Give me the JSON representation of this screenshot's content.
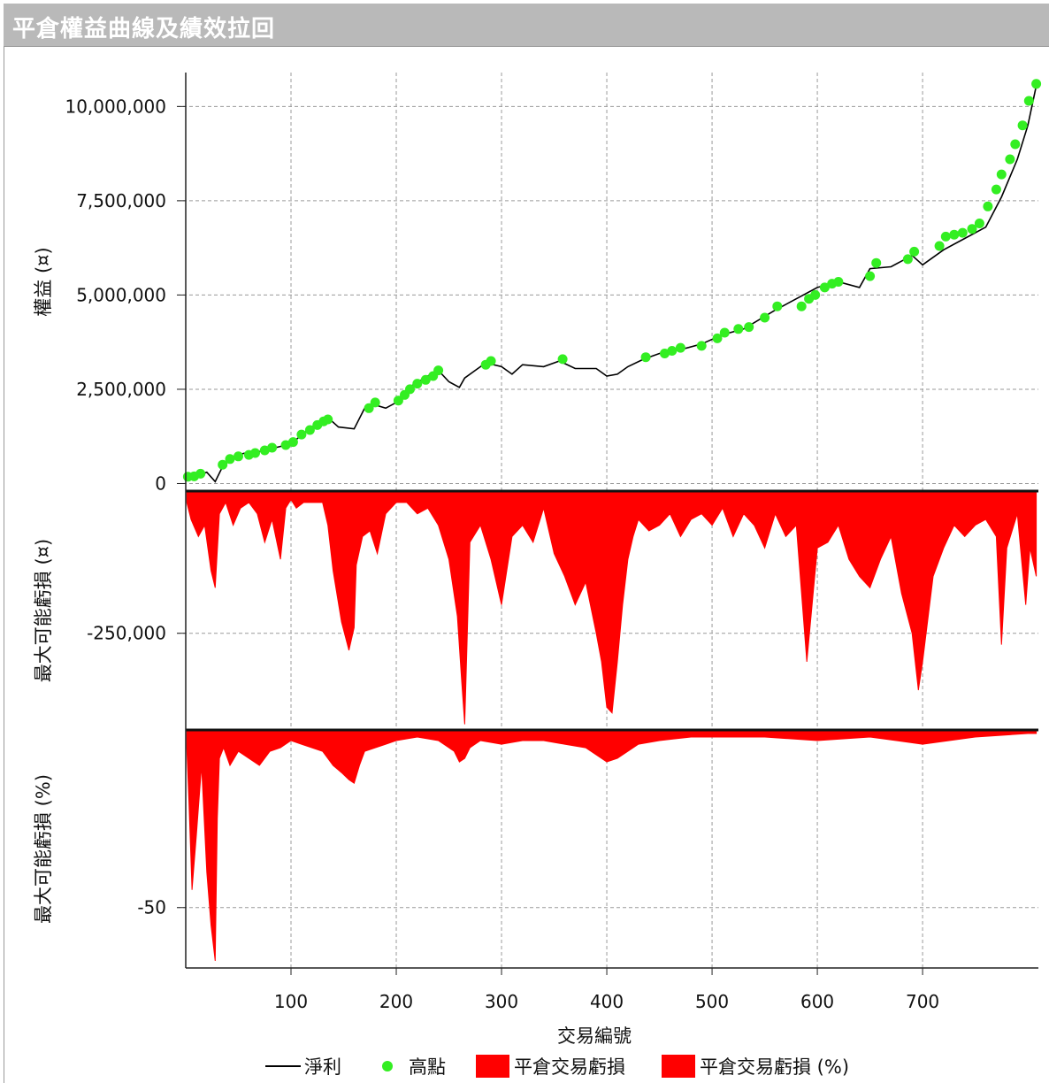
{
  "window": {
    "title": "平倉權益曲線及績效拉回"
  },
  "chart_data": [
    {
      "type": "line",
      "panel": "equity",
      "ylabel": "權益 (¤)",
      "ylim": [
        -200000,
        10900000
      ],
      "yticks": [
        0,
        2500000,
        5000000,
        7500000,
        10000000
      ],
      "ytick_labels": [
        "0",
        "2,500,000",
        "5,000,000",
        "7,500,000",
        "10,000,000"
      ],
      "grid": true,
      "series": [
        {
          "name": "淨利",
          "color": "#000000",
          "x": [
            1,
            10,
            20,
            28,
            35,
            45,
            55,
            70,
            85,
            100,
            115,
            130,
            135,
            145,
            160,
            170,
            178,
            190,
            200,
            215,
            230,
            240,
            250,
            260,
            265,
            275,
            285,
            300,
            310,
            320,
            340,
            355,
            370,
            390,
            400,
            410,
            420,
            435,
            450,
            470,
            490,
            510,
            530,
            560,
            600,
            620,
            640,
            650,
            670,
            690,
            700,
            720,
            740,
            760,
            775,
            790,
            800,
            808
          ],
          "y": [
            150000,
            200000,
            300000,
            50000,
            450000,
            700000,
            800000,
            850000,
            950000,
            1050000,
            1400000,
            1700000,
            1750000,
            1500000,
            1450000,
            2000000,
            2100000,
            2000000,
            2150000,
            2600000,
            2850000,
            3000000,
            2700000,
            2550000,
            2800000,
            3000000,
            3200000,
            3100000,
            2900000,
            3150000,
            3100000,
            3250000,
            3050000,
            3050000,
            2850000,
            2900000,
            3100000,
            3300000,
            3450000,
            3550000,
            3700000,
            3950000,
            4100000,
            4600000,
            5200000,
            5350000,
            5200000,
            5700000,
            5750000,
            6050000,
            5800000,
            6200000,
            6500000,
            6800000,
            7600000,
            8600000,
            9500000,
            10550000
          ]
        },
        {
          "name": "高點",
          "color": "#33ee22",
          "x": [
            2,
            8,
            14,
            35,
            42,
            50,
            60,
            66,
            75,
            82,
            95,
            102,
            110,
            118,
            125,
            131,
            135,
            174,
            180,
            202,
            208,
            213,
            220,
            228,
            235,
            240,
            285,
            290,
            358,
            437,
            455,
            462,
            470,
            490,
            505,
            512,
            525,
            535,
            550,
            562,
            585,
            592,
            598,
            607,
            614,
            620,
            650,
            656,
            686,
            692,
            716,
            722,
            730,
            738,
            747,
            754,
            762,
            770,
            775,
            783,
            788,
            795,
            801,
            808
          ],
          "y": [
            180000,
            190000,
            260000,
            500000,
            650000,
            720000,
            760000,
            810000,
            880000,
            950000,
            1020000,
            1100000,
            1300000,
            1420000,
            1550000,
            1650000,
            1700000,
            2000000,
            2150000,
            2200000,
            2350000,
            2500000,
            2650000,
            2750000,
            2850000,
            3000000,
            3150000,
            3250000,
            3300000,
            3350000,
            3450000,
            3520000,
            3600000,
            3650000,
            3850000,
            4000000,
            4100000,
            4150000,
            4400000,
            4700000,
            4700000,
            4900000,
            5000000,
            5200000,
            5300000,
            5350000,
            5500000,
            5850000,
            5950000,
            6150000,
            6300000,
            6550000,
            6600000,
            6650000,
            6750000,
            6900000,
            7350000,
            7800000,
            8200000,
            8600000,
            9000000,
            9500000,
            10150000,
            10600000
          ]
        }
      ]
    },
    {
      "type": "area",
      "panel": "drawdown_amount",
      "ylabel": "最大可能虧損 (¤)",
      "ylim": [
        -420000,
        0
      ],
      "yticks": [
        -250000
      ],
      "ytick_labels": [
        "-250,000"
      ],
      "grid": true,
      "series": [
        {
          "name": "平倉交易虧損",
          "color": "#ff0000",
          "x": [
            1,
            5,
            12,
            18,
            24,
            28,
            32,
            38,
            45,
            52,
            60,
            68,
            75,
            82,
            90,
            95,
            100,
            105,
            112,
            120,
            130,
            135,
            140,
            148,
            155,
            160,
            162,
            168,
            175,
            182,
            190,
            200,
            210,
            220,
            230,
            240,
            250,
            258,
            262,
            265,
            270,
            280,
            290,
            300,
            310,
            320,
            330,
            340,
            350,
            360,
            370,
            380,
            390,
            395,
            400,
            405,
            410,
            415,
            420,
            425,
            430,
            440,
            450,
            460,
            470,
            480,
            490,
            500,
            510,
            520,
            530,
            540,
            550,
            560,
            570,
            580,
            590,
            600,
            610,
            620,
            630,
            640,
            650,
            660,
            670,
            680,
            690,
            696,
            700,
            710,
            720,
            730,
            740,
            750,
            760,
            770,
            775,
            780,
            790,
            798,
            802,
            808
          ],
          "y": [
            -20000,
            -50000,
            -80000,
            -60000,
            -140000,
            -170000,
            -40000,
            -20000,
            -60000,
            -30000,
            -20000,
            -40000,
            -90000,
            -50000,
            -120000,
            -30000,
            -15000,
            -30000,
            -20000,
            -20000,
            -20000,
            -60000,
            -140000,
            -230000,
            -280000,
            -240000,
            -130000,
            -80000,
            -70000,
            -110000,
            -40000,
            -20000,
            -20000,
            -40000,
            -30000,
            -60000,
            -120000,
            -220000,
            -330000,
            -410000,
            -90000,
            -60000,
            -120000,
            -200000,
            -80000,
            -60000,
            -90000,
            -30000,
            -110000,
            -150000,
            -200000,
            -160000,
            -250000,
            -300000,
            -380000,
            -390000,
            -300000,
            -200000,
            -120000,
            -80000,
            -50000,
            -70000,
            -60000,
            -40000,
            -80000,
            -50000,
            -40000,
            -60000,
            -30000,
            -80000,
            -40000,
            -60000,
            -100000,
            -40000,
            -80000,
            -60000,
            -300000,
            -100000,
            -90000,
            -60000,
            -120000,
            -150000,
            -170000,
            -120000,
            -80000,
            -180000,
            -250000,
            -350000,
            -300000,
            -150000,
            -100000,
            -60000,
            -80000,
            -60000,
            -50000,
            -80000,
            -270000,
            -100000,
            -40000,
            -200000,
            -100000,
            -150000
          ]
        }
      ]
    },
    {
      "type": "area",
      "panel": "drawdown_percent",
      "ylabel": "最大可能虧損 (%)",
      "ylim": [
        -67,
        0
      ],
      "yticks": [
        -50
      ],
      "ytick_labels": [
        "-50"
      ],
      "grid": true,
      "series": [
        {
          "name": "平倉交易虧損 (%)",
          "color": "#ff0000",
          "x": [
            1,
            3,
            6,
            10,
            15,
            20,
            24,
            28,
            30,
            32,
            36,
            42,
            50,
            60,
            70,
            80,
            90,
            100,
            110,
            120,
            130,
            140,
            148,
            155,
            160,
            165,
            170,
            180,
            190,
            200,
            220,
            240,
            255,
            260,
            265,
            270,
            280,
            300,
            320,
            340,
            360,
            380,
            390,
            400,
            410,
            420,
            430,
            450,
            480,
            500,
            550,
            600,
            650,
            700,
            750,
            800,
            808
          ],
          "y": [
            -5,
            -20,
            -45,
            -30,
            -10,
            -40,
            -55,
            -65,
            -25,
            -8,
            -5,
            -10,
            -6,
            -8,
            -10,
            -6,
            -5,
            -3,
            -4,
            -5,
            -6,
            -10,
            -12,
            -14,
            -15,
            -10,
            -6,
            -5,
            -4,
            -3,
            -2,
            -3,
            -6,
            -9,
            -8,
            -5,
            -3,
            -4,
            -3,
            -3,
            -4,
            -5,
            -7,
            -9,
            -8,
            -6,
            -4,
            -3,
            -2,
            -2,
            -2,
            -3,
            -2,
            -4,
            -2,
            -1,
            -1
          ]
        }
      ]
    }
  ],
  "x_axis": {
    "label": "交易編號",
    "xlim": [
      0,
      810
    ],
    "ticks": [
      100,
      200,
      300,
      400,
      500,
      600,
      700
    ],
    "tick_labels": [
      "100",
      "200",
      "300",
      "400",
      "500",
      "600",
      "700"
    ]
  },
  "legend": {
    "position": "bottom",
    "items": [
      {
        "label": "淨利",
        "icon": "line-swatch",
        "color": "#000000"
      },
      {
        "label": "高點",
        "icon": "dot-swatch",
        "color": "#33ee22"
      },
      {
        "label": "平倉交易虧損",
        "icon": "box-swatch",
        "color": "#ff0000"
      },
      {
        "label": "平倉交易虧損 (%)",
        "icon": "box-swatch",
        "color": "#ff0000"
      }
    ]
  }
}
